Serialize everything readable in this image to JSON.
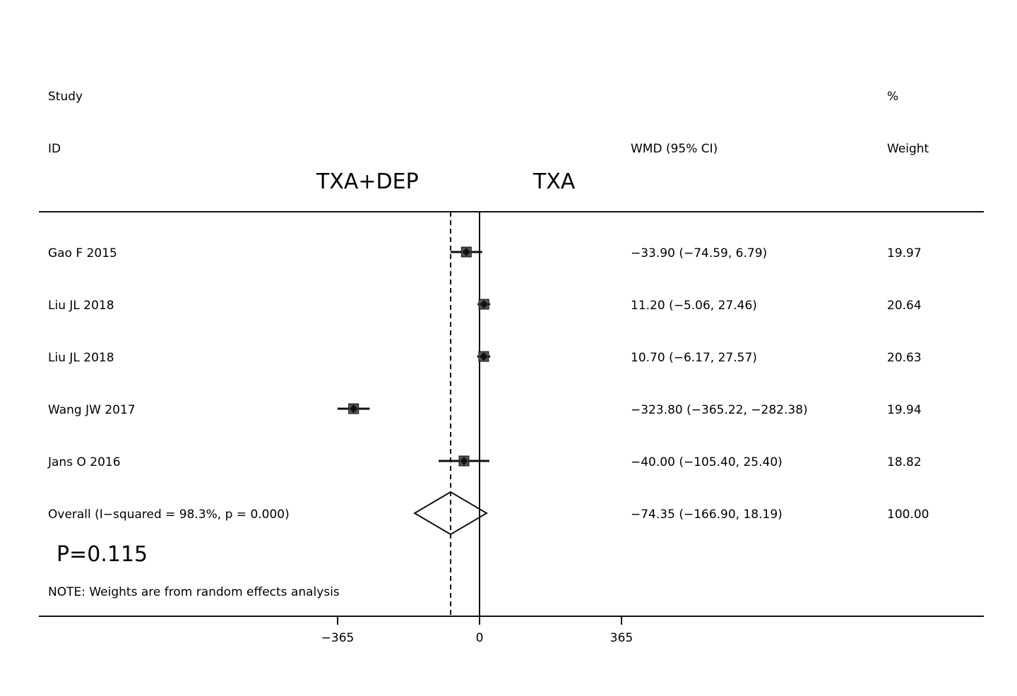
{
  "header": {
    "study_label": "Study",
    "id_label": "ID",
    "effect_label": "WMD (95% CI)",
    "pct_label": "%",
    "weight_label": "Weight",
    "left_group": "TXA+DEP",
    "right_group": "TXA"
  },
  "chart_data": {
    "type": "forest",
    "effect_measure": "WMD (95% CI)",
    "studies": [
      {
        "id": "Gao F 2015",
        "wmd": -33.9,
        "lower": -74.59,
        "upper": 6.79,
        "ci_text": "−33.90 (−74.59, 6.79)",
        "weight": "19.97"
      },
      {
        "id": "Liu JL 2018",
        "wmd": 11.2,
        "lower": -5.06,
        "upper": 27.46,
        "ci_text": "11.20 (−5.06, 27.46)",
        "weight": "20.64"
      },
      {
        "id": "Liu JL 2018",
        "wmd": 10.7,
        "lower": -6.17,
        "upper": 27.57,
        "ci_text": "10.70 (−6.17, 27.57)",
        "weight": "20.63"
      },
      {
        "id": "Wang JW 2017",
        "wmd": -323.8,
        "lower": -365.22,
        "upper": -282.38,
        "ci_text": "−323.80 (−365.22, −282.38)",
        "weight": "19.94"
      },
      {
        "id": "Jans O 2016",
        "wmd": -40.0,
        "lower": -105.4,
        "upper": 25.4,
        "ci_text": "−40.00 (−105.40, 25.40)",
        "weight": "18.82"
      }
    ],
    "overall": {
      "label": "Overall  (I−squared = 98.3%, p = 0.000)",
      "wmd": -74.35,
      "lower": -166.9,
      "upper": 18.19,
      "ci_text": "−74.35 (−166.90, 18.19)",
      "weight": "100.00"
    },
    "x_ticks": [
      {
        "value": -365,
        "label": "−365"
      },
      {
        "value": 0,
        "label": "0"
      },
      {
        "value": 365,
        "label": "365"
      }
    ],
    "null_line": 0,
    "p_annotation": "P=0.115",
    "note": "NOTE: Weights are from random effects analysis"
  }
}
